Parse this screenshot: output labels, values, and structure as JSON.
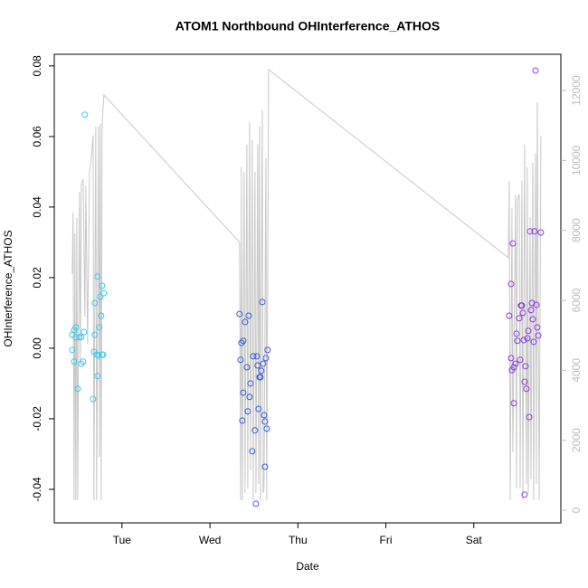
{
  "chart_data": {
    "type": "scatter",
    "title": "ATOM1 Northbound OHInterference_ATHOS",
    "xlabel": "Date",
    "ylabel": "OHInterference_ATHOS",
    "xlim": [
      0.23,
      5.99
    ],
    "xticks": [
      {
        "value": 1,
        "label": "Tue"
      },
      {
        "value": 2,
        "label": "Wed"
      },
      {
        "value": 3,
        "label": "Thu"
      },
      {
        "value": 4,
        "label": "Fri"
      },
      {
        "value": 5,
        "label": "Sat"
      }
    ],
    "ylim": [
      -0.0495,
      0.0833
    ],
    "yticks": [
      -0.04,
      -0.02,
      {
        "value": 0,
        "label": "0.00"
      },
      0.02,
      0.04,
      0.06,
      0.08
    ],
    "y2lim": [
      -362,
      13035
    ],
    "y2ticks": [
      0,
      2000,
      4000,
      6000,
      8000,
      10000,
      12000
    ],
    "series": [
      {
        "type": "scatter",
        "color": "#3cc8f0",
        "x": [
          0.434,
          0.455,
          0.475,
          0.434,
          0.455,
          0.475,
          0.496,
          0.516,
          0.537,
          0.537,
          0.558,
          0.578,
          0.568,
          0.671,
          0.681,
          0.691,
          0.691,
          0.712,
          0.722,
          0.733,
          0.722,
          0.743,
          0.753,
          0.763,
          0.774,
          0.784,
          0.794,
          0.774
        ],
        "values": [
          0.0038,
          0.0051,
          0.0059,
          -0.0005,
          -0.0038,
          0.0031,
          -0.0115,
          0.0031,
          0.0031,
          -0.0044,
          -0.0038,
          0.0662,
          0.0046,
          -0.0144,
          -0.001,
          0.0038,
          0.0128,
          -0.0018,
          0.0203,
          -0.0021,
          -0.0079,
          0.0059,
          0.0146,
          0.0092,
          0.0177,
          -0.0018,
          0.0156,
          -0.0018
        ]
      },
      {
        "type": "scatter",
        "color": "#3a5bdc",
        "x": [
          2.337,
          2.358,
          2.379,
          2.348,
          2.368,
          2.379,
          2.399,
          2.42,
          2.44,
          2.43,
          2.451,
          2.461,
          2.481,
          2.492,
          2.512,
          2.523,
          2.533,
          2.543,
          2.553,
          2.564,
          2.574,
          2.584,
          2.595,
          2.605,
          2.615,
          2.626,
          2.626,
          2.636,
          2.646,
          2.656
        ],
        "values": [
          0.0097,
          0.0015,
          0.0021,
          -0.0033,
          -0.0205,
          -0.0126,
          0.0074,
          -0.0054,
          0.0092,
          -0.0179,
          -0.0138,
          -0.01,
          -0.0292,
          -0.0023,
          -0.0233,
          -0.0441,
          -0.0023,
          -0.0049,
          -0.0172,
          -0.0082,
          -0.0082,
          -0.0064,
          0.0131,
          -0.0044,
          -0.019,
          -0.0336,
          -0.0208,
          -0.0028,
          -0.0228,
          -0.0005
        ]
      },
      {
        "type": "scatter",
        "color": "#8a3be0",
        "x": [
          5.403,
          5.424,
          5.424,
          5.434,
          5.444,
          5.455,
          5.455,
          5.475,
          5.486,
          5.496,
          5.517,
          5.527,
          5.537,
          5.547,
          5.558,
          5.568,
          5.578,
          5.578,
          5.588,
          5.599,
          5.609,
          5.619,
          5.63,
          5.64,
          5.65,
          5.661,
          5.671,
          5.681,
          5.691,
          5.702,
          5.712,
          5.722,
          5.733,
          5.763
        ],
        "values": [
          0.0092,
          0.0182,
          -0.0028,
          -0.0062,
          0.0297,
          -0.0054,
          -0.0156,
          -0.0044,
          0.0041,
          0.0021,
          0.0085,
          -0.0033,
          0.0121,
          0.0121,
          0.01,
          0.0023,
          -0.0095,
          -0.0415,
          -0.0051,
          -0.0115,
          0.0028,
          0.0049,
          -0.0195,
          0.0331,
          0.0108,
          0.0128,
          0.0082,
          0.0018,
          0.0331,
          0.0787,
          0.0123,
          0.0059,
          0.0036,
          0.0328
        ]
      },
      {
        "type": "line",
        "axis": "y2",
        "color": "#c8c8c8",
        "x": [
          0.434,
          0.444,
          0.455,
          0.465,
          0.475,
          0.486,
          0.496,
          0.516,
          0.527,
          0.537,
          0.558,
          0.578,
          0.589,
          0.609,
          0.63,
          0.65,
          0.671,
          0.681,
          0.691,
          0.702,
          0.712,
          0.722,
          0.733,
          0.743,
          0.753,
          0.763,
          0.774,
          0.794,
          2.337,
          2.348,
          2.358,
          2.368,
          2.389,
          2.399,
          2.42,
          2.43,
          2.451,
          2.461,
          2.481,
          2.492,
          2.512,
          2.523,
          2.543,
          2.553,
          2.564,
          2.574,
          2.595,
          2.605,
          2.615,
          2.636,
          2.646,
          2.667,
          5.393,
          5.403,
          5.414,
          5.434,
          5.444,
          5.475,
          5.486,
          5.496,
          5.517,
          5.527,
          5.547,
          5.558,
          5.578,
          5.599,
          5.609,
          5.619,
          5.64,
          5.65,
          5.671,
          5.681,
          5.702,
          5.712,
          5.722,
          5.743,
          5.763
        ],
        "values": [
          6752,
          8512,
          285,
          7916,
          285,
          8356,
          285,
          9106,
          4191,
          9288,
          9469,
          5536,
          9288,
          4760,
          9675,
          10064,
          10710,
          285,
          6054,
          10969,
          285,
          5407,
          10969,
          1526,
          11047,
          285,
          11015,
          11874,
          7658,
          285,
          9805,
          285,
          9675,
          492,
          10452,
          621,
          11098,
          1138,
          10581,
          285,
          9675,
          492,
          10452,
          750,
          10969,
          285,
          11435,
          492,
          621,
          10064,
          285,
          12599,
          7218,
          9417,
          285,
          8641,
          1656,
          9029,
          621,
          8899,
          9029,
          621,
          9417,
          285,
          10452,
          750,
          9805,
          492,
          8382,
          880,
          9934,
          285,
          10193,
          750,
          11668,
          285,
          10710
        ]
      }
    ]
  }
}
